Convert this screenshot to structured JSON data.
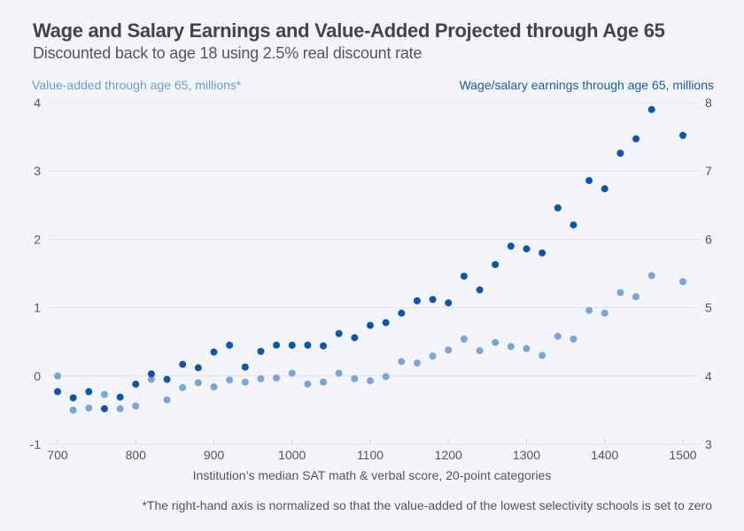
{
  "chart_data": {
    "type": "scatter",
    "title": "Wage and Salary Earnings and Value-Added Projected through Age 65",
    "subtitle": "Discounted back to age 18 using 2.5% real discount rate",
    "xlabel": "Institution’s median SAT math & verbal score, 20-point categories",
    "ylabel_left": "Value-added through age 65, millions*",
    "ylabel_right": "Wage/salary earnings through age 65, millions",
    "footnote": "*The right-hand axis is normalized so that the value-added of the lowest selectivity schools is set to zero",
    "xlim": [
      700,
      1500
    ],
    "ylim_left": [
      -1,
      4
    ],
    "ylim_right": [
      3,
      8
    ],
    "x_ticks": [
      700,
      800,
      900,
      1000,
      1100,
      1200,
      1300,
      1400,
      1500
    ],
    "y_ticks_left": [
      -1,
      0,
      1,
      2,
      3,
      4
    ],
    "y_ticks_right": [
      3,
      4,
      5,
      6,
      7,
      8
    ],
    "grid": true,
    "colors": {
      "value_added": "#7ba4d9",
      "wage": "#0a56b0",
      "grid": "#e2e4ec",
      "text": "#555555"
    },
    "series": [
      {
        "name": "Value-added through age 65, millions",
        "axis": "left",
        "x": [
          700,
          720,
          740,
          760,
          780,
          800,
          820,
          840,
          860,
          880,
          900,
          920,
          940,
          960,
          980,
          1000,
          1020,
          1040,
          1060,
          1080,
          1100,
          1120,
          1140,
          1160,
          1180,
          1200,
          1220,
          1240,
          1260,
          1280,
          1300,
          1320,
          1340,
          1360,
          1380,
          1400,
          1420,
          1440,
          1460,
          1500
        ],
        "y": [
          0.0,
          -0.5,
          -0.47,
          -0.27,
          -0.48,
          -0.44,
          -0.05,
          -0.35,
          -0.17,
          -0.1,
          -0.16,
          -0.06,
          -0.09,
          -0.04,
          -0.03,
          0.04,
          -0.12,
          -0.09,
          0.04,
          -0.04,
          -0.07,
          -0.01,
          0.21,
          0.19,
          0.29,
          0.38,
          0.54,
          0.37,
          0.49,
          0.43,
          0.4,
          0.3,
          0.58,
          0.54,
          0.96,
          0.92,
          1.22,
          1.16,
          1.47,
          1.38
        ]
      },
      {
        "name": "Wage/salary earnings through age 65, millions",
        "axis": "right",
        "x": [
          700,
          720,
          740,
          760,
          780,
          800,
          820,
          840,
          860,
          880,
          900,
          920,
          940,
          960,
          980,
          1000,
          1020,
          1040,
          1060,
          1080,
          1100,
          1120,
          1140,
          1160,
          1180,
          1200,
          1220,
          1240,
          1260,
          1280,
          1300,
          1320,
          1340,
          1360,
          1380,
          1400,
          1420,
          1440,
          1460,
          1500
        ],
        "y": [
          3.77,
          3.68,
          3.77,
          3.52,
          3.69,
          3.88,
          4.03,
          3.95,
          4.17,
          4.12,
          4.35,
          4.45,
          4.13,
          4.36,
          4.45,
          4.45,
          4.45,
          4.44,
          4.62,
          4.56,
          4.74,
          4.78,
          4.92,
          5.1,
          5.12,
          5.07,
          5.46,
          5.26,
          5.63,
          5.9,
          5.86,
          5.8,
          6.46,
          6.21,
          6.86,
          6.74,
          7.26,
          7.47,
          7.9,
          7.52
        ]
      }
    ]
  }
}
